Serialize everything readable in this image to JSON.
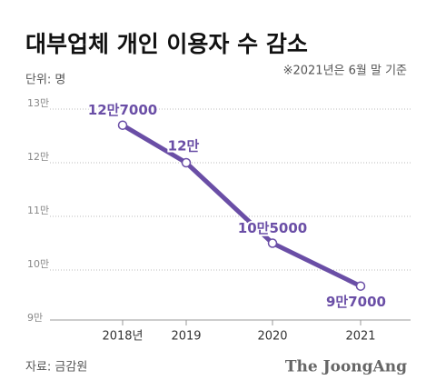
{
  "chart_data": {
    "type": "line",
    "title": "대부업체 개인 이용자 수 감소",
    "unit": "단위: 명",
    "note": "※2021년은 6월 말 기준",
    "source": "자료: 금감원",
    "brand": "The JoongAng",
    "categories": [
      "2018년",
      "2019",
      "2020",
      "2021"
    ],
    "series": [
      {
        "color": "#6a4ea6",
        "values": [
          127000,
          120000,
          105000,
          97000
        ],
        "value_labels": [
          "12만7000",
          "12만",
          "10만5000",
          "9만7000"
        ]
      }
    ],
    "ylim": [
      90000,
      130000
    ],
    "yticks": [
      {
        "value": 90000,
        "label": "9만"
      },
      {
        "value": 100000,
        "label": "10만"
      },
      {
        "value": 110000,
        "label": "11만"
      },
      {
        "value": 120000,
        "label": "12만"
      },
      {
        "value": 130000,
        "label": "13만"
      }
    ],
    "grid": true
  }
}
